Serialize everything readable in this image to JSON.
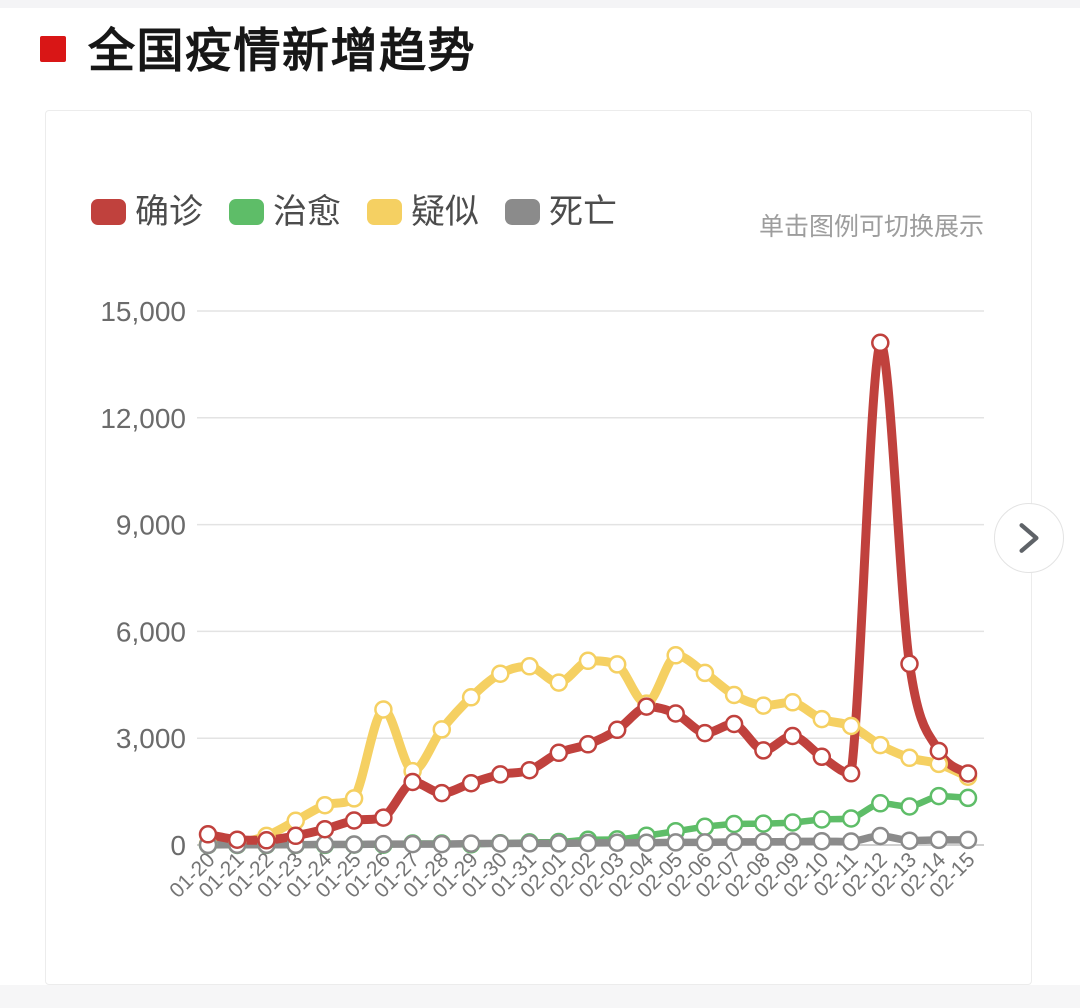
{
  "page": {
    "title": "全国疫情新增趋势",
    "legend_hint": "单击图例可切换展示"
  },
  "colors": {
    "accent_red": "#d91616",
    "confirmed": "#c0413d",
    "cured": "#5ebd68",
    "suspected": "#f5d062",
    "deaths": "#8b8b8b",
    "grid": "#e3e3e3",
    "axis_line": "#cfcfcf",
    "y_label": "#6b6b6b",
    "x_label": "#757575"
  },
  "icons": {
    "title_bullet": "red-square",
    "chevron_right": "›"
  },
  "chart_data": {
    "type": "line",
    "title": "全国疫情新增趋势",
    "smooth": true,
    "grid": true,
    "legend_position": "top-left",
    "legend_hint": "单击图例可切换展示",
    "ylim": [
      0,
      15000
    ],
    "yticks": [
      0,
      3000,
      6000,
      9000,
      12000,
      15000
    ],
    "categories": [
      "01-20",
      "01-21",
      "01-22",
      "01-23",
      "01-24",
      "01-25",
      "01-26",
      "01-27",
      "01-28",
      "01-29",
      "01-30",
      "01-31",
      "02-01",
      "02-02",
      "02-03",
      "02-04",
      "02-05",
      "02-06",
      "02-07",
      "02-08",
      "02-09",
      "02-10",
      "02-11",
      "02-12",
      "02-13",
      "02-14",
      "02-15"
    ],
    "series": [
      {
        "name": "确诊",
        "key": "confirmed",
        "color": "#c0413d",
        "values": [
          300,
          149,
          131,
          259,
          444,
          688,
          769,
          1771,
          1459,
          1737,
          1982,
          2102,
          2590,
          2829,
          3235,
          3887,
          3694,
          3143,
          3399,
          2656,
          3062,
          2478,
          2015,
          14108,
          5090,
          2641,
          2009
        ]
      },
      {
        "name": "治愈",
        "key": "cured",
        "color": "#5ebd68",
        "values": [
          0,
          0,
          3,
          6,
          3,
          11,
          9,
          43,
          43,
          21,
          47,
          72,
          85,
          147,
          157,
          262,
          387,
          510,
          590,
          600,
          632,
          716,
          744,
          1171,
          1081,
          1373,
          1323
        ]
      },
      {
        "name": "疑似",
        "key": "suspected",
        "color": "#f5d062",
        "values": [
          27,
          53,
          257,
          680,
          1118,
          1309,
          3806,
          2077,
          3248,
          4148,
          4812,
          5019,
          4562,
          5173,
          5072,
          3971,
          5328,
          4833,
          4214,
          3916,
          4008,
          3536,
          3342,
          2807,
          2450,
          2277,
          1918
        ]
      },
      {
        "name": "死亡",
        "key": "deaths",
        "color": "#8b8b8b",
        "values": [
          3,
          8,
          8,
          8,
          16,
          15,
          24,
          26,
          26,
          38,
          43,
          46,
          45,
          57,
          64,
          65,
          73,
          73,
          86,
          89,
          97,
          108,
          97,
          254,
          121,
          143,
          142
        ]
      }
    ]
  }
}
